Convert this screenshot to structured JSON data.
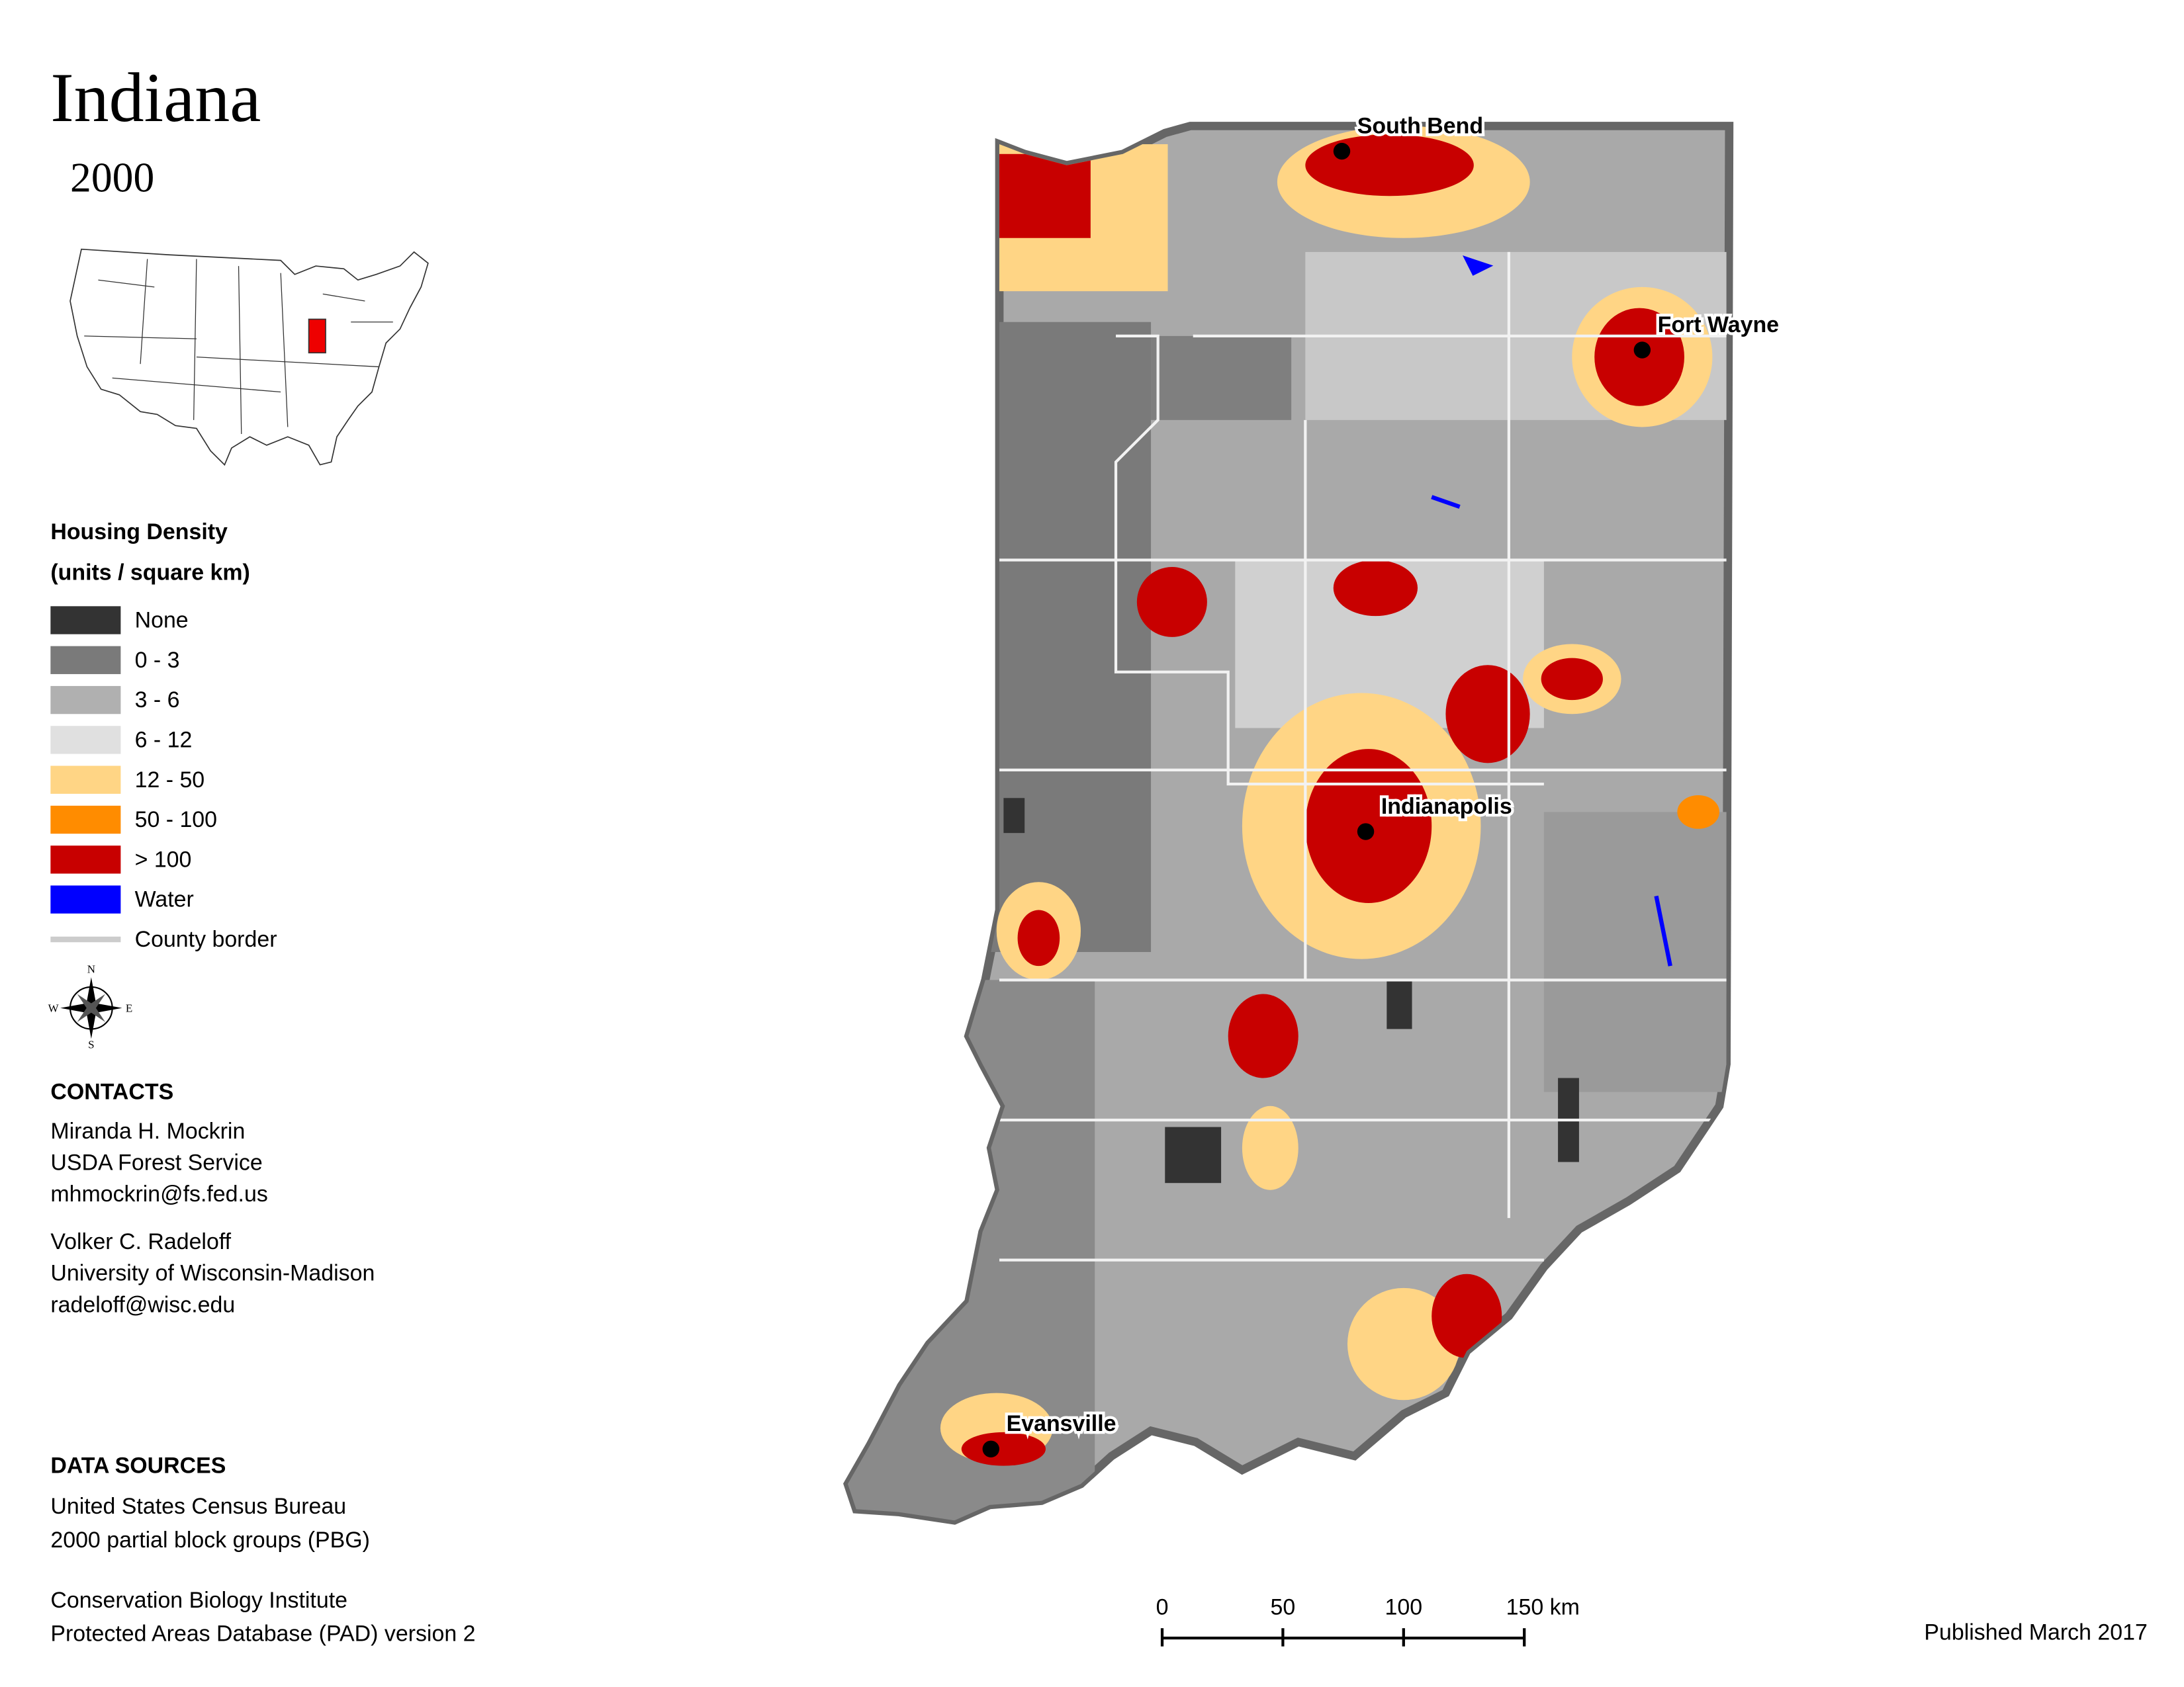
{
  "header": {
    "title": "Indiana",
    "subtitle": "2000"
  },
  "legend": {
    "title": "Housing Density",
    "subtitle": "(units / square km)",
    "items": [
      {
        "label": "None",
        "color": "#333333"
      },
      {
        "label": "0 - 3",
        "color": "#7a7a7a"
      },
      {
        "label": "3 - 6",
        "color": "#b0b0b0"
      },
      {
        "label": "6 - 12",
        "color": "#e0e0e0"
      },
      {
        "label": "12 - 50",
        "color": "#ffd585"
      },
      {
        "label": "50 - 100",
        "color": "#ff8c00"
      },
      {
        "label": "> 100",
        "color": "#c80000"
      },
      {
        "label": "Water",
        "color": "#0000ff"
      }
    ],
    "border_label": "County border"
  },
  "compass": {
    "n": "N",
    "e": "E",
    "s": "S",
    "w": "W"
  },
  "contacts": {
    "title": "CONTACTS",
    "people": [
      {
        "name": "Miranda H. Mockrin",
        "org": "USDA Forest Service",
        "email": "mhmockrin@fs.fed.us"
      },
      {
        "name": "Volker C. Radeloff",
        "org": "University of Wisconsin-Madison",
        "email": "radeloff@wisc.edu"
      }
    ]
  },
  "data_sources": {
    "title": "DATA SOURCES",
    "sources": [
      {
        "line1": "United States Census Bureau",
        "line2": "2000 partial block groups (PBG)"
      },
      {
        "line1": "Conservation Biology Institute",
        "line2": "Protected Areas Database (PAD) version 2"
      }
    ]
  },
  "cities": [
    "South Bend",
    "Fort Wayne",
    "Indianapolis",
    "Evansville"
  ],
  "scale_bar": {
    "labels": [
      "0",
      "50",
      "100",
      "150 km"
    ]
  },
  "published": "Published March 2017"
}
